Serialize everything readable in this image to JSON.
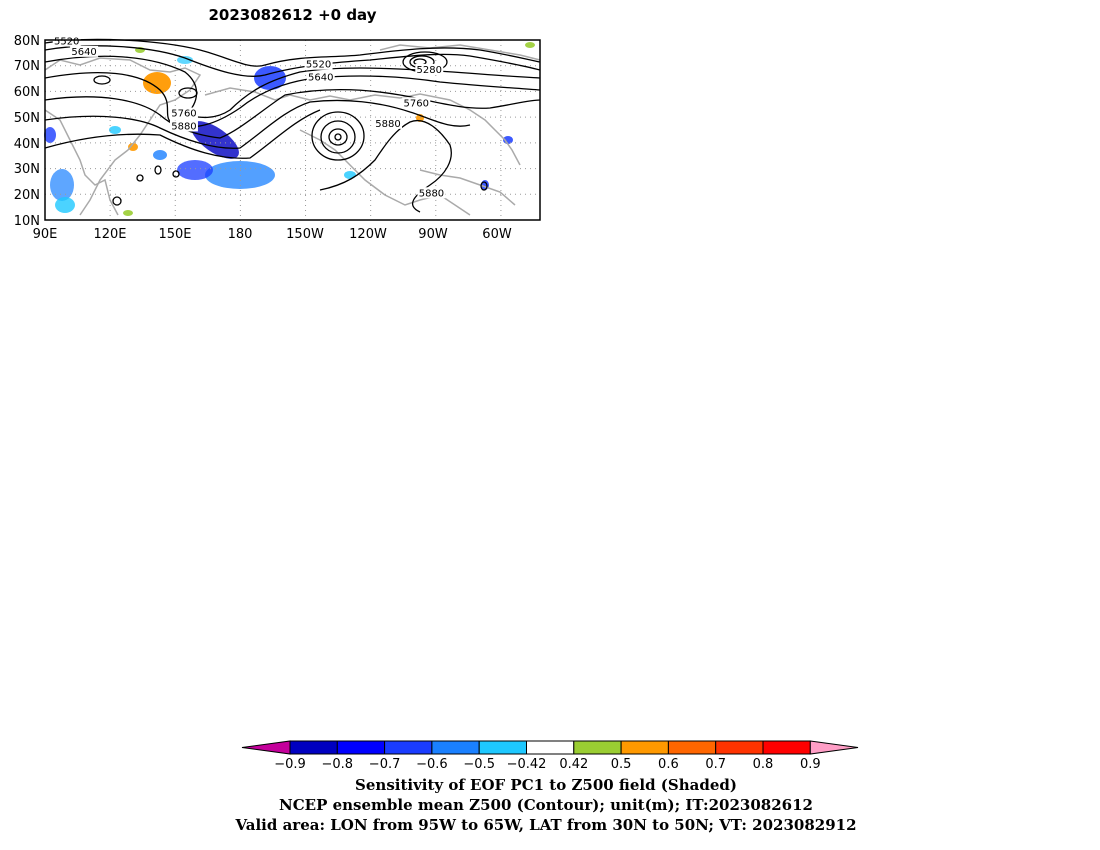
{
  "title": "2023082612  +0 day",
  "map": {
    "lat_labels": [
      "80N",
      "70N",
      "60N",
      "50N",
      "40N",
      "30N",
      "20N",
      "10N"
    ],
    "lon_labels": [
      "90E",
      "120E",
      "150E",
      "180",
      "150W",
      "120W",
      "90W",
      "60W"
    ],
    "contour_labels": [
      {
        "text": "5520",
        "lon": 100,
        "lat": 79
      },
      {
        "text": "5640",
        "lon": 108,
        "lat": 75
      },
      {
        "text": "5520",
        "lon": 216,
        "lat": 70
      },
      {
        "text": "5640",
        "lon": 217,
        "lat": 65
      },
      {
        "text": "5280",
        "lon": 267,
        "lat": 68
      },
      {
        "text": "5760",
        "lon": 154,
        "lat": 51
      },
      {
        "text": "5880",
        "lon": 154,
        "lat": 46
      },
      {
        "text": "5760",
        "lon": 261,
        "lat": 55
      },
      {
        "text": "5880",
        "lon": 248,
        "lat": 47
      },
      {
        "text": "5880",
        "lon": 268,
        "lat": 20
      }
    ],
    "colors": {
      "contour": "#000000",
      "coast": "#aaaaaa",
      "grid": "#9a9a9a"
    }
  },
  "colorbar": {
    "ticks": [
      "−0.9",
      "−0.8",
      "−0.7",
      "−0.6",
      "−0.5",
      "−0.42",
      "0.42",
      "0.5",
      "0.6",
      "0.7",
      "0.8",
      "0.9"
    ],
    "colors": [
      "#c4009b",
      "#0000c0",
      "#0000ff",
      "#1a3cff",
      "#1a80ff",
      "#1ec8ff",
      "#ffffff",
      "#9acd32",
      "#ff9900",
      "#ff6600",
      "#ff3300",
      "#ff0000",
      "#ff9ec6"
    ]
  },
  "caption": {
    "line1": "Sensitivity of EOF PC1 to Z500 field (Shaded)",
    "line2": "NCEP ensemble mean Z500 (Contour); unit(m); IT:2023082612",
    "line3": "Valid area: LON from 95W to 65W, LAT from 30N to 50N; VT: 2023082912"
  }
}
